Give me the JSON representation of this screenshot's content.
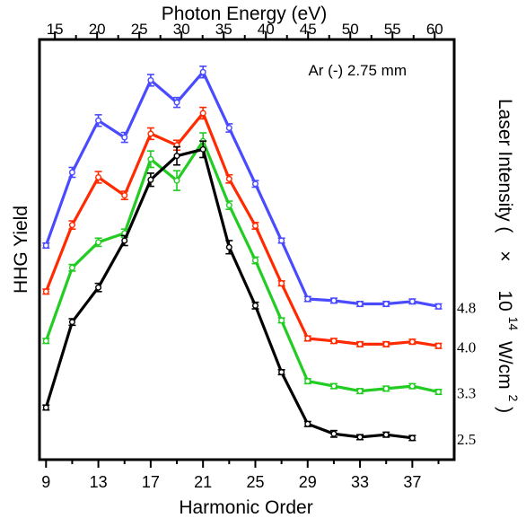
{
  "chart_data": {
    "type": "line",
    "xlabel": "Harmonic Order",
    "ylabel": "HHG Yield",
    "top_xlabel": "Photon Energy (eV)",
    "annotation": "Ar (-) 2.75 mm",
    "right_label": "Laser Intensity ( × 10^14 W/cm^2)",
    "right_label_parts": {
      "prefix": "Laser Intensity (",
      "times": "×",
      "base": "10",
      "exp": "14",
      "unit": "W/cm",
      "unit_exp": "2",
      "close": ")"
    },
    "xlim": [
      8.5,
      40.2
    ],
    "ylim": [
      0,
      100
    ],
    "x_ticks": [
      9,
      13,
      17,
      21,
      25,
      29,
      33,
      37
    ],
    "x_minor_ticks": [
      11,
      15,
      19,
      23,
      27,
      31,
      35,
      39
    ],
    "top_ticks": [
      15,
      20,
      25,
      30,
      35,
      40,
      45,
      50,
      55,
      60
    ],
    "top_minor_ticks": [
      17.5,
      22.5,
      27.5,
      32.5,
      37.5,
      42.5,
      47.5,
      52.5,
      57.5
    ],
    "ev_per_harmonic": 1.55,
    "grid": false,
    "series": [
      {
        "name": "4.8",
        "color": "#4a4aff",
        "x": [
          9,
          11,
          13,
          15,
          17,
          19,
          21,
          23,
          25,
          27,
          29,
          31,
          33,
          35,
          37,
          39
        ],
        "values": [
          51.2,
          69.0,
          81.6,
          77.5,
          91.4,
          86.0,
          93.4,
          79.8,
          66.2,
          52.4,
          38.2,
          37.8,
          37.0,
          37.0,
          37.6,
          36.4
        ],
        "errors": [
          0.6,
          1.2,
          1.4,
          1.2,
          1.4,
          1.2,
          1.4,
          1.0,
          0.8,
          0.6,
          0.6,
          0.6,
          0.6,
          0.6,
          0.6,
          0.6
        ]
      },
      {
        "name": "4.0",
        "color": "#ff2a00",
        "x": [
          9,
          11,
          13,
          15,
          17,
          19,
          21,
          23,
          25,
          27,
          29,
          31,
          33,
          35,
          37,
          39
        ],
        "values": [
          40.0,
          56.2,
          67.8,
          63.4,
          78.4,
          75.6,
          83.4,
          67.4,
          56.0,
          42.0,
          28.6,
          28.0,
          27.2,
          27.2,
          27.8,
          26.8
        ],
        "errors": [
          0.6,
          1.0,
          1.4,
          1.0,
          1.4,
          1.2,
          1.4,
          1.0,
          0.8,
          0.6,
          0.6,
          0.6,
          0.6,
          0.6,
          0.6,
          0.6
        ]
      },
      {
        "name": "3.3",
        "color": "#22cc22",
        "x": [
          9,
          11,
          13,
          15,
          17,
          19,
          21,
          23,
          25,
          27,
          29,
          31,
          33,
          35,
          37,
          39
        ],
        "values": [
          28.0,
          45.8,
          52.0,
          54.2,
          72.2,
          67.0,
          76.6,
          61.0,
          47.6,
          33.0,
          18.2,
          17.0,
          15.8,
          16.4,
          17.0,
          15.6
        ],
        "errors": [
          0.6,
          0.8,
          1.0,
          1.0,
          2.0,
          2.4,
          2.0,
          1.0,
          0.8,
          0.6,
          0.6,
          0.6,
          0.6,
          0.6,
          0.6,
          0.6
        ]
      },
      {
        "name": "2.5",
        "color": "#000000",
        "x": [
          9,
          11,
          13,
          15,
          17,
          19,
          21,
          23,
          25,
          27,
          29,
          31,
          33,
          35,
          37
        ],
        "values": [
          11.8,
          32.6,
          41.0,
          52.4,
          67.2,
          73.0,
          74.6,
          50.8,
          36.6,
          20.4,
          7.8,
          5.4,
          4.6,
          5.2,
          4.4
        ],
        "errors": [
          0.6,
          0.8,
          1.0,
          1.2,
          1.6,
          2.2,
          2.0,
          1.6,
          0.8,
          0.6,
          0.6,
          0.8,
          0.6,
          0.6,
          0.6
        ]
      }
    ]
  }
}
